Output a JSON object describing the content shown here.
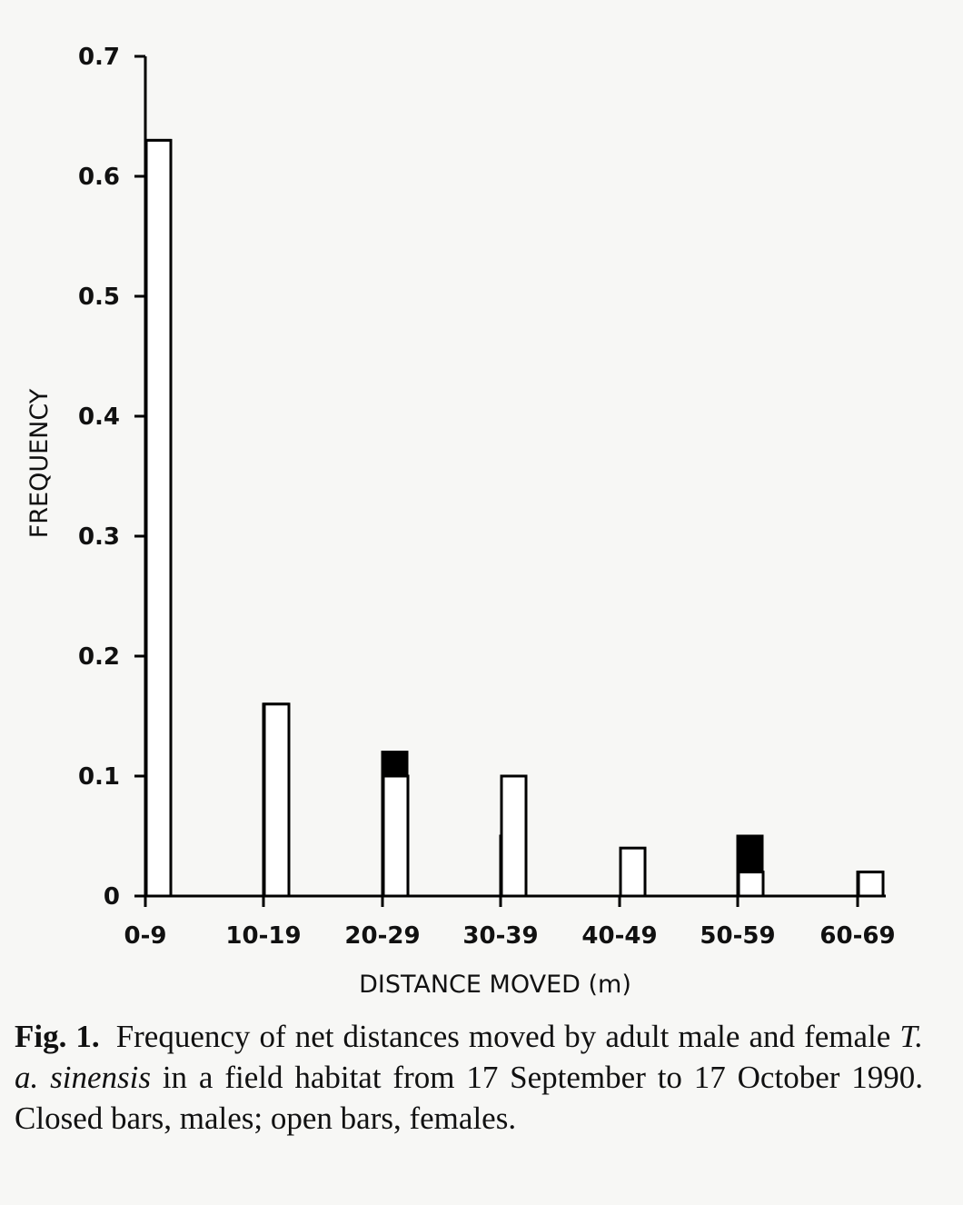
{
  "chart_data": {
    "type": "bar",
    "categories": [
      "0-9",
      "10-19",
      "20-29",
      "30-39",
      "40-49",
      "50-59",
      "60-69"
    ],
    "series": [
      {
        "values": [
          0.63,
          0.16,
          0.12,
          0.05,
          0.0,
          0.05,
          0.02
        ],
        "fill": "#000000"
      },
      {
        "values": [
          0.63,
          0.16,
          0.1,
          0.1,
          0.04,
          0.02,
          0.02
        ],
        "fill": "#ffffff"
      }
    ],
    "xlabel": "DISTANCE MOVED (m)",
    "ylabel": "FREQUENCY",
    "ylim": [
      0,
      0.7
    ],
    "yticks": [
      "0",
      "0.1",
      "0.2",
      "0.3",
      "0.4",
      "0.5",
      "0.6",
      "0.7"
    ],
    "grid": false,
    "legend": "none"
  },
  "caption": {
    "label": "Fig. 1.",
    "text_before": "Frequency of net distances moved by adult male and female ",
    "species": "T. a. sinensis",
    "text_after": " in a field habitat from 17 September to 17 October 1990. Closed bars, males; open bars, females."
  }
}
